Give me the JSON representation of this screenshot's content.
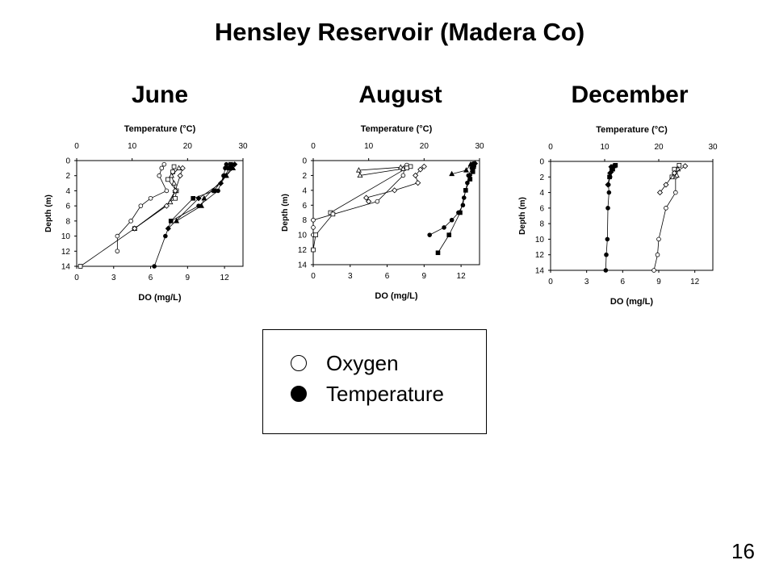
{
  "title": "Hensley Reservoir (Madera Co)",
  "page_number": "16",
  "legend": [
    {
      "label": "Oxygen",
      "marker": "open-circle"
    },
    {
      "label": "Temperature",
      "marker": "filled-circle"
    }
  ],
  "chart_data": [
    {
      "type": "line",
      "title": "June",
      "top_axis_label": "Temperature (°C)",
      "xlabel": "DO (mg/L)",
      "ylabel": "Depth (m)",
      "temp_range": [
        0,
        30
      ],
      "temp_ticks": [
        0,
        10,
        20,
        30
      ],
      "do_range": [
        0,
        13.5
      ],
      "do_ticks": [
        0,
        3,
        6,
        9,
        12
      ],
      "ylim": [
        0,
        14
      ],
      "y_ticks": [
        0,
        2,
        4,
        6,
        8,
        10,
        12,
        14
      ],
      "series": [
        {
          "axis": "do",
          "marker": "circle",
          "fill": "open",
          "points": [
            [
              7.1,
              0.5
            ],
            [
              6.9,
              1
            ],
            [
              6.7,
              2
            ],
            [
              7.3,
              4
            ],
            [
              6,
              5
            ],
            [
              5.2,
              6
            ],
            [
              4.4,
              8
            ],
            [
              3.3,
              10
            ],
            [
              3.3,
              12
            ]
          ]
        },
        {
          "axis": "do",
          "marker": "square",
          "fill": "open",
          "points": [
            [
              7.9,
              0.8
            ],
            [
              7.8,
              1.5
            ],
            [
              7.4,
              2.5
            ],
            [
              8.1,
              4
            ],
            [
              8,
              5
            ],
            [
              4.7,
              9
            ],
            [
              0.3,
              14
            ]
          ]
        },
        {
          "axis": "do",
          "marker": "triangle",
          "fill": "open",
          "points": [
            [
              8.3,
              1
            ],
            [
              7.7,
              2
            ],
            [
              7.9,
              3
            ],
            [
              8,
              4
            ],
            [
              7.6,
              5.5
            ],
            [
              4.7,
              9
            ]
          ]
        },
        {
          "axis": "do",
          "marker": "diamond",
          "fill": "open",
          "points": [
            [
              8.6,
              1
            ],
            [
              8.4,
              2
            ],
            [
              8,
              4
            ],
            [
              7.3,
              6
            ],
            [
              4.7,
              9
            ]
          ]
        },
        {
          "axis": "temp",
          "marker": "circle",
          "fill": "solid",
          "points": [
            [
              27,
              0.5
            ],
            [
              26.8,
              1
            ],
            [
              26.5,
              2
            ],
            [
              25.5,
              4
            ],
            [
              22,
              6
            ],
            [
              17,
              8
            ],
            [
              16,
              10
            ],
            [
              14,
              14
            ]
          ]
        },
        {
          "axis": "temp",
          "marker": "square",
          "fill": "solid",
          "points": [
            [
              27.8,
              0.5
            ],
            [
              27.5,
              1
            ],
            [
              26.8,
              2
            ],
            [
              24.8,
              4
            ],
            [
              21,
              5
            ],
            [
              17,
              8
            ]
          ]
        },
        {
          "axis": "temp",
          "marker": "triangle",
          "fill": "solid",
          "points": [
            [
              28.2,
              1
            ],
            [
              27,
              2
            ],
            [
              23,
              5
            ],
            [
              22.5,
              6
            ],
            [
              18,
              8
            ]
          ]
        },
        {
          "axis": "temp",
          "marker": "diamond",
          "fill": "solid",
          "points": [
            [
              28.5,
              0.5
            ],
            [
              27.9,
              1
            ],
            [
              26,
              3
            ],
            [
              22,
              5
            ],
            [
              16.5,
              9
            ]
          ]
        }
      ]
    },
    {
      "type": "line",
      "title": "August",
      "top_axis_label": "Temperature (°C)",
      "xlabel": "DO (mg/L)",
      "ylabel": "Depth (m)",
      "temp_range": [
        0,
        30
      ],
      "temp_ticks": [
        0,
        10,
        20,
        30
      ],
      "do_range": [
        0,
        13.5
      ],
      "do_ticks": [
        0,
        3,
        6,
        9,
        12
      ],
      "ylim": [
        0,
        14
      ],
      "y_ticks": [
        0,
        2,
        4,
        6,
        8,
        10,
        12,
        14
      ],
      "series": [
        {
          "axis": "do",
          "marker": "circle",
          "fill": "open",
          "points": [
            [
              7.6,
              0.6
            ],
            [
              7.4,
              1
            ],
            [
              7.3,
              2
            ],
            [
              5.2,
              5.5
            ],
            [
              0,
              8
            ],
            [
              0,
              9
            ],
            [
              0,
              10
            ]
          ]
        },
        {
          "axis": "do",
          "marker": "square",
          "fill": "open",
          "points": [
            [
              7.9,
              0.8
            ],
            [
              7.6,
              1
            ],
            [
              1.4,
              7
            ],
            [
              1.6,
              7.2
            ],
            [
              0.2,
              10
            ],
            [
              0,
              12
            ]
          ]
        },
        {
          "axis": "do",
          "marker": "triangle",
          "fill": "open",
          "points": [
            [
              7.1,
              0.9
            ],
            [
              3.7,
              1.3
            ],
            [
              3.8,
              2
            ],
            [
              7.3,
              1.1
            ]
          ]
        },
        {
          "axis": "do",
          "marker": "diamond",
          "fill": "open",
          "points": [
            [
              9,
              0.8
            ],
            [
              8.7,
              1.2
            ],
            [
              8.3,
              2
            ],
            [
              8.5,
              3
            ],
            [
              6.6,
              4
            ],
            [
              4.3,
              5
            ],
            [
              4.5,
              5.5
            ]
          ]
        },
        {
          "axis": "temp",
          "marker": "circle",
          "fill": "solid",
          "points": [
            [
              28.9,
              0.4
            ],
            [
              28.6,
              1
            ],
            [
              28,
              2
            ],
            [
              27.8,
              3
            ],
            [
              27.5,
              4
            ],
            [
              27.2,
              5
            ],
            [
              27,
              6
            ],
            [
              26.2,
              7
            ],
            [
              25,
              8
            ],
            [
              23.6,
              9
            ],
            [
              21,
              10
            ]
          ]
        },
        {
          "axis": "temp",
          "marker": "square",
          "fill": "solid",
          "points": [
            [
              29,
              0.6
            ],
            [
              28.8,
              1.5
            ],
            [
              28.3,
              2.5
            ],
            [
              27.5,
              4
            ],
            [
              26.5,
              7
            ],
            [
              24.5,
              10
            ],
            [
              22.5,
              12.4
            ]
          ]
        },
        {
          "axis": "temp",
          "marker": "triangle",
          "fill": "solid",
          "points": [
            [
              28.4,
              0.5
            ],
            [
              27.6,
              1.3
            ],
            [
              25,
              1.8
            ]
          ]
        },
        {
          "axis": "temp",
          "marker": "diamond",
          "fill": "solid",
          "points": [
            [
              29.2,
              0.4
            ],
            [
              28.9,
              1
            ],
            [
              28.2,
              2
            ]
          ]
        }
      ]
    },
    {
      "type": "line",
      "title": "December",
      "top_axis_label": "Temperature (°C)",
      "xlabel": "DO (mg/L)",
      "ylabel": "Depth (m)",
      "temp_range": [
        0,
        30
      ],
      "temp_ticks": [
        0,
        10,
        20,
        30
      ],
      "do_range": [
        0,
        13.5
      ],
      "do_ticks": [
        0,
        3,
        6,
        9,
        12
      ],
      "ylim": [
        0,
        14
      ],
      "y_ticks": [
        0,
        2,
        4,
        6,
        8,
        10,
        12,
        14
      ],
      "series": [
        {
          "axis": "do",
          "marker": "circle",
          "fill": "open",
          "points": [
            [
              10.3,
              1
            ],
            [
              10.4,
              2
            ],
            [
              10.4,
              4
            ],
            [
              9.6,
              6
            ],
            [
              9,
              10
            ],
            [
              8.9,
              12
            ],
            [
              8.6,
              14
            ]
          ]
        },
        {
          "axis": "do",
          "marker": "square",
          "fill": "open",
          "points": [
            [
              10.7,
              0.5
            ],
            [
              10.3,
              1
            ],
            [
              10.1,
              2
            ]
          ]
        },
        {
          "axis": "do",
          "marker": "triangle",
          "fill": "open",
          "points": [
            [
              10.6,
              1
            ],
            [
              10.5,
              1.8
            ]
          ]
        },
        {
          "axis": "do",
          "marker": "diamond",
          "fill": "open",
          "points": [
            [
              11.2,
              0.6
            ],
            [
              10.3,
              1.5
            ],
            [
              9.6,
              3
            ],
            [
              9.1,
              4
            ]
          ]
        },
        {
          "axis": "temp",
          "marker": "circle",
          "fill": "solid",
          "points": [
            [
              11.8,
              0.5
            ],
            [
              11.3,
              1
            ],
            [
              11,
              2
            ],
            [
              10.7,
              3
            ],
            [
              10.8,
              4
            ],
            [
              10.6,
              6
            ],
            [
              10.5,
              10
            ],
            [
              10.3,
              12
            ],
            [
              10.2,
              14
            ]
          ]
        },
        {
          "axis": "temp",
          "marker": "square",
          "fill": "solid",
          "points": [
            [
              12,
              0.5
            ],
            [
              11.5,
              1
            ],
            [
              10.9,
              2
            ]
          ]
        },
        {
          "axis": "temp",
          "marker": "triangle",
          "fill": "solid",
          "points": [
            [
              11.7,
              0.6
            ],
            [
              11.2,
              1.2
            ]
          ]
        },
        {
          "axis": "temp",
          "marker": "diamond",
          "fill": "solid",
          "points": [
            [
              11.2,
              0.7
            ],
            [
              11,
              1.5
            ],
            [
              10.6,
              3
            ]
          ]
        }
      ]
    }
  ]
}
